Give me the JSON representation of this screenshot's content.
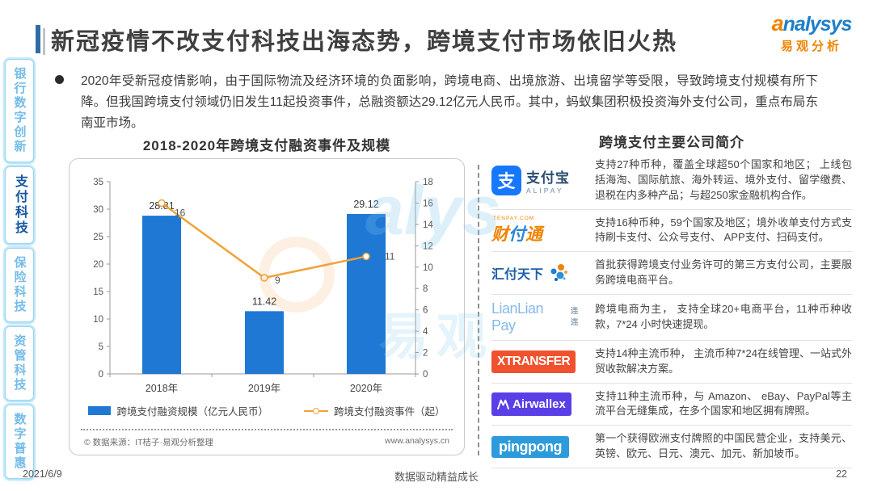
{
  "header": {
    "title": "新冠疫情不改支付科技出海态势，跨境支付市场依旧火热",
    "logo_a": "a",
    "logo_latin": "nalysys",
    "logo_cn": "易观分析"
  },
  "summary": {
    "bullet": "2020年受新冠疫情影响，由于国际物流及经济环境的负面影响，跨境电商、出境旅游、出境留学等受限，导致跨境支付规模有所下降。但我国跨境支付领域仍旧发生11起投资事件，总融资额达29.12亿元人民币。其中，蚂蚁集团积极投资海外支付公司，重点布局东南亚市场。"
  },
  "sidebar": {
    "items": [
      {
        "label": "银行数字创新",
        "active": false
      },
      {
        "label": "支付科技",
        "active": true
      },
      {
        "label": "保险科技",
        "active": false
      },
      {
        "label": "资管科技",
        "active": false
      },
      {
        "label": "数字普惠",
        "active": false
      }
    ]
  },
  "chart_data": {
    "type": "bar",
    "title": "2018-2020年跨境支付融资事件及规模",
    "categories": [
      "2018年",
      "2019年",
      "2020年"
    ],
    "series": [
      {
        "name": "跨境支付融资规模（亿元人民币）",
        "type": "bar",
        "axis": "left",
        "values": [
          28.81,
          11.42,
          29.12
        ],
        "color": "#1e78d4"
      },
      {
        "name": "跨境支付融资事件（起）",
        "type": "line",
        "axis": "right",
        "values": [
          16,
          9,
          11
        ],
        "color": "#f0a33a"
      }
    ],
    "left_axis": {
      "min": 0,
      "max": 35,
      "step": 5
    },
    "right_axis": {
      "min": 0,
      "max": 18,
      "step": 2
    },
    "grid": false,
    "legend_position": "bottom",
    "source_left": "© 数据来源：IT桔子·易观分析整理",
    "source_right": "www.analysys.cn"
  },
  "companies": {
    "title": "跨境支付主要公司简介",
    "rows": [
      {
        "logo": "alipay",
        "logo_main": "支付宝",
        "logo_sub": "ALIPAY",
        "logo_glyph": "支",
        "desc": "支持27种币种，覆盖全球超50个国家和地区； 上线包括海淘、国际航旅、海外转运、境外支付、留学缴费、退税在内多种产品；与超250家金融机构合作。"
      },
      {
        "logo": "tenpay",
        "logo_main": "财付通",
        "logo_sub": "TENPAY.COM",
        "desc": "支持16种币种，59个国家及地区；境外收单支付方式支持刷卡支付、公众号支付、 APP支付、扫码支付。"
      },
      {
        "logo": "huifu",
        "logo_main": "汇付天下",
        "desc": "首批获得跨境支付业务许可的第三方支付公司，主要服务跨境电商平台。"
      },
      {
        "logo": "lianlian",
        "logo_main": "LianLian Pay",
        "logo_sub": "连连",
        "desc": "跨境电商为主， 支持全球20+电商平台，11种币种收款，7*24 小时快速提现。"
      },
      {
        "logo": "xtransfer",
        "logo_main": "XTRANSFER",
        "desc": "支持14种主流币种， 主流币种7*24在线管理、一站式外贸收款解决方案。"
      },
      {
        "logo": "airwallex",
        "logo_main": "Airwallex",
        "desc": "支持11种主流币种，与 Amazon、 eBay、PayPal等主流平台无缝集成，在多个国家和地区拥有牌照。"
      },
      {
        "logo": "pingpong",
        "logo_main": "pingpong",
        "desc": "第一个获得欧洲支付牌照的中国民营企业，支持美元、英镑、欧元、日元、澳元、加元、新加坡币。"
      }
    ]
  },
  "watermark": {
    "latin": "alys",
    "cn": "易观"
  },
  "footer": {
    "date": "2021/6/9",
    "slogan": "数据驱动精益成长",
    "page": "22"
  },
  "colors": {
    "bar_blue": "#1e78d4",
    "line_orange": "#f0a33a",
    "brand_blue": "#1e7fc8",
    "brand_orange": "#f08300",
    "sidebar_active": "#15559e"
  }
}
